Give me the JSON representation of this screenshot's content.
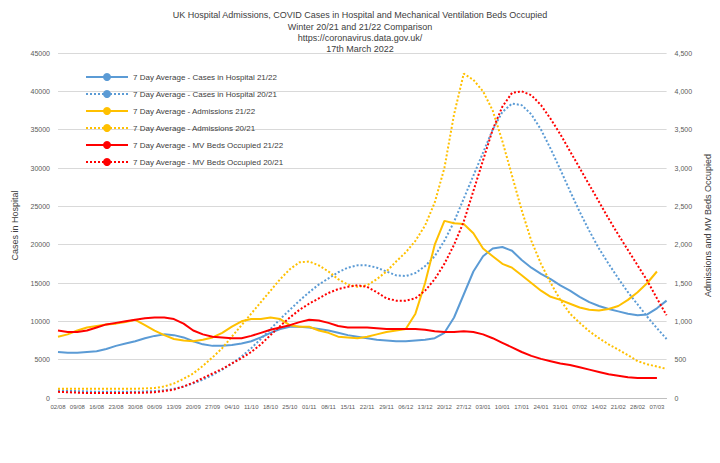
{
  "chart_data": {
    "type": "line",
    "title": "UK Hospital Admissions, COVID Cases in Hospital and Mechanical Ventilation Beds Occupied",
    "subtitle": "Winter 20/21 and 21/22 Comparison\nhttps://coronavirus.data.gov.uk/\n17th March 2022",
    "y_label": "Cases in Hospital",
    "y2_label": "Admissions and MV Beds Occupied",
    "categories": [
      "02/08",
      null,
      "09/08",
      null,
      "16/08",
      null,
      "23/08",
      null,
      "30/08",
      null,
      "06/09",
      null,
      "13/09",
      null,
      "20/09",
      null,
      "27/09",
      null,
      "04/10",
      null,
      "11/10",
      null,
      "18/10",
      null,
      "25/10",
      null,
      "01/11",
      null,
      "08/11",
      null,
      "15/11",
      null,
      "22/11",
      null,
      "29/11",
      null,
      "06/12",
      null,
      "13/12",
      null,
      "20/12",
      null,
      "27/12",
      null,
      "03/01",
      null,
      "10/01",
      null,
      "17/01",
      null,
      "24/01",
      null,
      "31/01",
      null,
      "07/02",
      null,
      "14/02",
      null,
      "21/02",
      null,
      "28/02",
      null,
      "07/03",
      null
    ],
    "ylim": [
      0,
      45000
    ],
    "yticks": [
      0,
      5000,
      10000,
      15000,
      20000,
      25000,
      30000,
      35000,
      40000,
      45000
    ],
    "y2lim": [
      0,
      4500
    ],
    "y2ticks": [
      0,
      500,
      {
        "value": 1000,
        "label": "1,000"
      },
      {
        "value": 1500,
        "label": "1,500"
      },
      {
        "value": 2000,
        "label": "2,000"
      },
      {
        "value": 2500,
        "label": "2,500"
      },
      {
        "value": 3000,
        "label": "3,000"
      },
      {
        "value": 3500,
        "label": "3,500"
      },
      {
        "value": 4000,
        "label": "4,000"
      },
      {
        "value": 4500,
        "label": "4,500"
      }
    ],
    "grid": true,
    "legend": "upper left",
    "series": [
      {
        "name": "7 Day Average - Cases in Hospital 21/22",
        "color": "#5b9bd5",
        "line_style": "solid",
        "values": [
          6000,
          5900,
          5900,
          6000,
          6100,
          6400,
          6800,
          7100,
          7400,
          7800,
          8100,
          8300,
          8200,
          7900,
          7400,
          7000,
          6800,
          6800,
          6900,
          7100,
          7400,
          7900,
          8500,
          9000,
          9300,
          9300,
          9200,
          9000,
          8800,
          8500,
          8200,
          8000,
          7800,
          7600,
          7500,
          7400,
          7400,
          7500,
          7600,
          7800,
          8500,
          10500,
          13500,
          16500,
          18500,
          19500,
          19700,
          19200,
          18000,
          17000,
          16200,
          15500,
          14700,
          14000,
          13200,
          12500,
          12000,
          11600,
          11300,
          11000,
          10800,
          10900,
          11700,
          12700
        ]
      },
      {
        "name": "7 Day Average - Cases in Hospital 20/21",
        "color": "#5b9bd5",
        "line_style": "dotted",
        "values": [
          1000,
          950,
          900,
          850,
          800,
          800,
          800,
          800,
          800,
          850,
          900,
          1000,
          1200,
          1500,
          1900,
          2400,
          3000,
          3700,
          4500,
          5400,
          6500,
          7700,
          9000,
          10300,
          11500,
          12700,
          13800,
          14800,
          15600,
          16400,
          17000,
          17300,
          17300,
          17000,
          16500,
          16000,
          15900,
          16300,
          17200,
          18500,
          20500,
          23000,
          26000,
          29000,
          32000,
          35000,
          37300,
          38400,
          38200,
          37000,
          35000,
          32500,
          29800,
          27000,
          24300,
          21800,
          19500,
          17500,
          15600,
          13800,
          12200,
          10600,
          9100,
          7700
        ]
      },
      {
        "name": "7 Day Average - Admissions 21/22",
        "color": "#ffc000",
        "line_style": "solid",
        "axis": "y2",
        "values": [
          800,
          830,
          880,
          920,
          940,
          960,
          970,
          990,
          1020,
          950,
          880,
          820,
          770,
          750,
          740,
          760,
          790,
          850,
          930,
          1000,
          1030,
          1030,
          1050,
          1030,
          950,
          930,
          930,
          880,
          850,
          800,
          790,
          780,
          800,
          830,
          860,
          880,
          900,
          1100,
          1500,
          2000,
          2310,
          2280,
          2270,
          2150,
          1950,
          1850,
          1750,
          1700,
          1600,
          1500,
          1400,
          1320,
          1280,
          1230,
          1180,
          1150,
          1140,
          1160,
          1200,
          1280,
          1380,
          1500,
          1650,
          null
        ]
      },
      {
        "name": "7 Day Average - Admissions 20/21",
        "color": "#ffc000",
        "line_style": "dotted",
        "axis": "y2",
        "values": [
          120,
          120,
          120,
          120,
          120,
          120,
          120,
          120,
          120,
          125,
          130,
          150,
          190,
          250,
          320,
          420,
          530,
          650,
          800,
          950,
          1100,
          1250,
          1400,
          1550,
          1680,
          1770,
          1780,
          1730,
          1650,
          1550,
          1480,
          1450,
          1470,
          1550,
          1650,
          1780,
          1900,
          2050,
          2250,
          2550,
          3000,
          3700,
          4230,
          4150,
          4000,
          3750,
          3350,
          2900,
          2450,
          2050,
          1750,
          1500,
          1280,
          1100,
          980,
          870,
          780,
          700,
          630,
          560,
          480,
          440,
          410,
          380
        ]
      },
      {
        "name": "7 Day Average - MV Beds Occupied 21/22",
        "color": "#ff0000",
        "line_style": "solid",
        "axis": "y2",
        "values": [
          880,
          860,
          860,
          880,
          920,
          960,
          980,
          1000,
          1020,
          1040,
          1050,
          1050,
          1030,
          970,
          880,
          830,
          800,
          790,
          780,
          780,
          810,
          850,
          890,
          920,
          950,
          990,
          1020,
          1010,
          980,
          940,
          920,
          920,
          920,
          910,
          900,
          900,
          900,
          900,
          890,
          870,
          860,
          860,
          870,
          860,
          830,
          780,
          720,
          660,
          600,
          550,
          510,
          480,
          450,
          430,
          400,
          370,
          340,
          310,
          290,
          270,
          260,
          260,
          260,
          null
        ]
      },
      {
        "name": "7 Day Average - MV Beds Occupied 20/21",
        "color": "#ff0000",
        "line_style": "dotted",
        "axis": "y2",
        "values": [
          80,
          75,
          70,
          65,
          65,
          65,
          65,
          65,
          70,
          70,
          75,
          90,
          110,
          150,
          200,
          260,
          320,
          380,
          450,
          520,
          600,
          700,
          820,
          940,
          1050,
          1150,
          1230,
          1300,
          1370,
          1420,
          1450,
          1470,
          1450,
          1380,
          1300,
          1270,
          1270,
          1300,
          1400,
          1550,
          1750,
          2000,
          2300,
          2700,
          3100,
          3500,
          3800,
          3980,
          4000,
          3950,
          3820,
          3640,
          3440,
          3220,
          3000,
          2780,
          2560,
          2340,
          2130,
          1930,
          1730,
          1530,
          1300,
          1080
        ]
      }
    ]
  }
}
